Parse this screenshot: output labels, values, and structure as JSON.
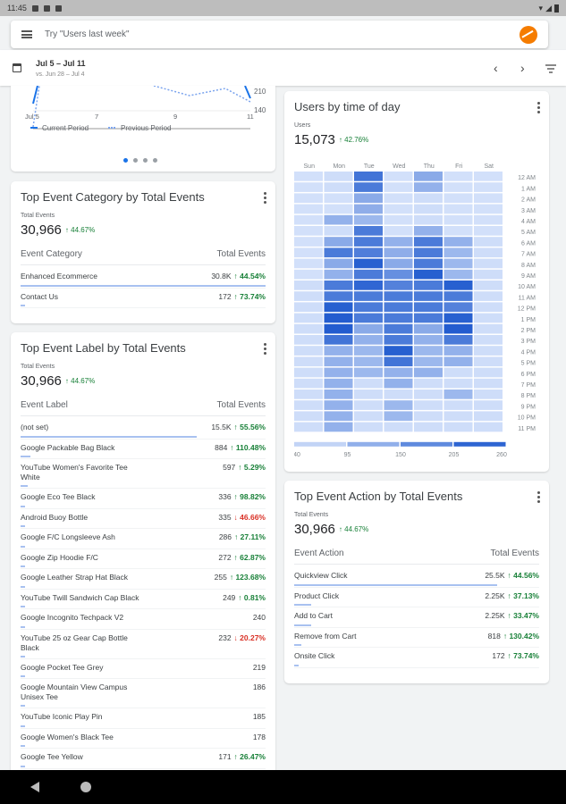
{
  "status": {
    "time": "11:45"
  },
  "search": {
    "placeholder": "Try \"Users last week\""
  },
  "date": {
    "range": "Jul 5 – Jul 11",
    "compare": "vs. Jun 28 – Jul 4"
  },
  "line_card": {
    "y_ticks": [
      "210",
      "140"
    ],
    "x_ticks": [
      "Jul 5",
      "7",
      "9",
      "11"
    ],
    "legend": {
      "current": "Current Period",
      "previous": "Previous Period"
    },
    "page_dots": 4,
    "active_dot": 0
  },
  "category_card": {
    "title": "Top Event Category by Total Events",
    "metric_label": "Total Events",
    "metric_value": "30,966",
    "metric_change": "↑ 44.67%",
    "col1": "Event Category",
    "col2": "Total Events",
    "rows": [
      {
        "name": "Enhanced Ecommerce",
        "value": "30.8K",
        "change": "↑ 44.54%",
        "dir": "up",
        "share": 1.0
      },
      {
        "name": "Contact Us",
        "value": "172",
        "change": "↑ 73.74%",
        "dir": "up",
        "share": 0.01
      }
    ]
  },
  "label_card": {
    "title": "Top Event Label by Total Events",
    "metric_label": "Total Events",
    "metric_value": "30,966",
    "metric_change": "↑ 44.67%",
    "col1": "Event Label",
    "col2": "Total Events",
    "rows": [
      {
        "name": "(not set)",
        "value": "15.5K",
        "change": "↑ 55.56%",
        "dir": "up",
        "share": 0.72
      },
      {
        "name": "Google Packable Bag Black",
        "value": "884",
        "change": "↑ 110.48%",
        "dir": "up",
        "share": 0.04
      },
      {
        "name": "YouTube Women's Favorite Tee White",
        "value": "597",
        "change": "↑ 5.29%",
        "dir": "up",
        "share": 0.03
      },
      {
        "name": "Google Eco Tee Black",
        "value": "336",
        "change": "↑ 98.82%",
        "dir": "up",
        "share": 0.02
      },
      {
        "name": "Android Buoy Bottle",
        "value": "335",
        "change": "↓ 46.66%",
        "dir": "down",
        "share": 0.02
      },
      {
        "name": "Google F/C Longsleeve Ash",
        "value": "286",
        "change": "↑ 27.11%",
        "dir": "up",
        "share": 0.02
      },
      {
        "name": "Google Zip Hoodie F/C",
        "value": "272",
        "change": "↑ 62.87%",
        "dir": "up",
        "share": 0.02
      },
      {
        "name": "Google Leather Strap Hat Black",
        "value": "255",
        "change": "↑ 123.68%",
        "dir": "up",
        "share": 0.02
      },
      {
        "name": "YouTube Twill Sandwich Cap Black",
        "value": "249",
        "change": "↑ 0.81%",
        "dir": "up",
        "share": 0.01
      },
      {
        "name": "Google Incognito Techpack V2",
        "value": "240",
        "change": "",
        "dir": "",
        "share": 0.01
      },
      {
        "name": "YouTube 25 oz Gear Cap Bottle Black",
        "value": "232",
        "change": "↓ 20.27%",
        "dir": "down",
        "share": 0.01
      },
      {
        "name": "Google Pocket Tee Grey",
        "value": "219",
        "change": "",
        "dir": "",
        "share": 0.01
      },
      {
        "name": "Google Mountain View Campus Unisex Tee",
        "value": "186",
        "change": "",
        "dir": "",
        "share": 0.01
      },
      {
        "name": "YouTube Iconic Play Pin",
        "value": "185",
        "change": "",
        "dir": "",
        "share": 0.01
      },
      {
        "name": "Google Women's Black Tee",
        "value": "178",
        "change": "",
        "dir": "",
        "share": 0.01
      },
      {
        "name": "Google Tee Yellow",
        "value": "171",
        "change": "↑ 26.47%",
        "dir": "up",
        "share": 0.01
      }
    ]
  },
  "heat_card": {
    "title": "Users by time of day",
    "metric_label": "Users",
    "metric_value": "15,073",
    "metric_change": "↑ 42.76%",
    "days": [
      "Sun",
      "Mon",
      "Tue",
      "Wed",
      "Thu",
      "Fri",
      "Sat"
    ],
    "hours": [
      "12 AM",
      "1 AM",
      "2 AM",
      "3 AM",
      "4 AM",
      "5 AM",
      "6 AM",
      "7 AM",
      "8 AM",
      "9 AM",
      "10 AM",
      "11 AM",
      "12 PM",
      "1 PM",
      "2 PM",
      "3 PM",
      "4 PM",
      "5 PM",
      "6 PM",
      "7 PM",
      "8 PM",
      "9 PM",
      "10 PM",
      "11 PM"
    ],
    "legend_ticks": [
      "40",
      "95",
      "150",
      "205",
      "260"
    ],
    "values": [
      [
        50,
        55,
        210,
        50,
        130,
        50,
        50
      ],
      [
        50,
        55,
        200,
        50,
        120,
        50,
        50
      ],
      [
        50,
        50,
        130,
        50,
        55,
        50,
        50
      ],
      [
        50,
        50,
        125,
        50,
        55,
        50,
        50
      ],
      [
        50,
        120,
        110,
        50,
        55,
        50,
        50
      ],
      [
        50,
        55,
        200,
        50,
        120,
        50,
        50
      ],
      [
        50,
        130,
        200,
        120,
        200,
        120,
        55
      ],
      [
        50,
        200,
        195,
        125,
        200,
        110,
        55
      ],
      [
        50,
        130,
        240,
        130,
        200,
        110,
        55
      ],
      [
        50,
        120,
        200,
        170,
        240,
        110,
        55
      ],
      [
        55,
        200,
        230,
        190,
        200,
        240,
        55
      ],
      [
        55,
        200,
        200,
        200,
        200,
        200,
        55
      ],
      [
        55,
        240,
        200,
        200,
        200,
        190,
        55
      ],
      [
        55,
        245,
        200,
        200,
        200,
        240,
        55
      ],
      [
        55,
        245,
        130,
        200,
        130,
        245,
        55
      ],
      [
        55,
        210,
        120,
        200,
        120,
        200,
        55
      ],
      [
        55,
        120,
        110,
        240,
        110,
        120,
        55
      ],
      [
        55,
        120,
        110,
        210,
        110,
        120,
        55
      ],
      [
        55,
        120,
        110,
        120,
        120,
        55,
        55
      ],
      [
        55,
        120,
        55,
        120,
        55,
        55,
        55
      ],
      [
        55,
        120,
        55,
        55,
        55,
        110,
        55
      ],
      [
        55,
        120,
        55,
        110,
        55,
        55,
        55
      ],
      [
        55,
        120,
        55,
        110,
        55,
        55,
        55
      ],
      [
        55,
        120,
        55,
        55,
        55,
        55,
        55
      ]
    ],
    "range": [
      40,
      260
    ]
  },
  "action_card": {
    "title": "Top Event Action by Total Events",
    "metric_label": "Total Events",
    "metric_value": "30,966",
    "metric_change": "↑ 44.67%",
    "col1": "Event Action",
    "col2": "Total Events",
    "rows": [
      {
        "name": "Quickview Click",
        "value": "25.5K",
        "change": "↑ 44.56%",
        "dir": "up",
        "share": 0.83
      },
      {
        "name": "Product Click",
        "value": "2.25K",
        "change": "↑ 37.13%",
        "dir": "up",
        "share": 0.07
      },
      {
        "name": "Add to Cart",
        "value": "2.25K",
        "change": "↑ 33.47%",
        "dir": "up",
        "share": 0.07
      },
      {
        "name": "Remove from Cart",
        "value": "818",
        "change": "↑ 130.42%",
        "dir": "up",
        "share": 0.03
      },
      {
        "name": "Onsite Click",
        "value": "172",
        "change": "↑ 73.74%",
        "dir": "up",
        "share": 0.01
      }
    ]
  },
  "colors": {
    "accent": "#1a73e8",
    "up": "#188038",
    "down": "#d93025",
    "heat_low": "#dbe7fc",
    "heat_high": "#1552cc"
  }
}
